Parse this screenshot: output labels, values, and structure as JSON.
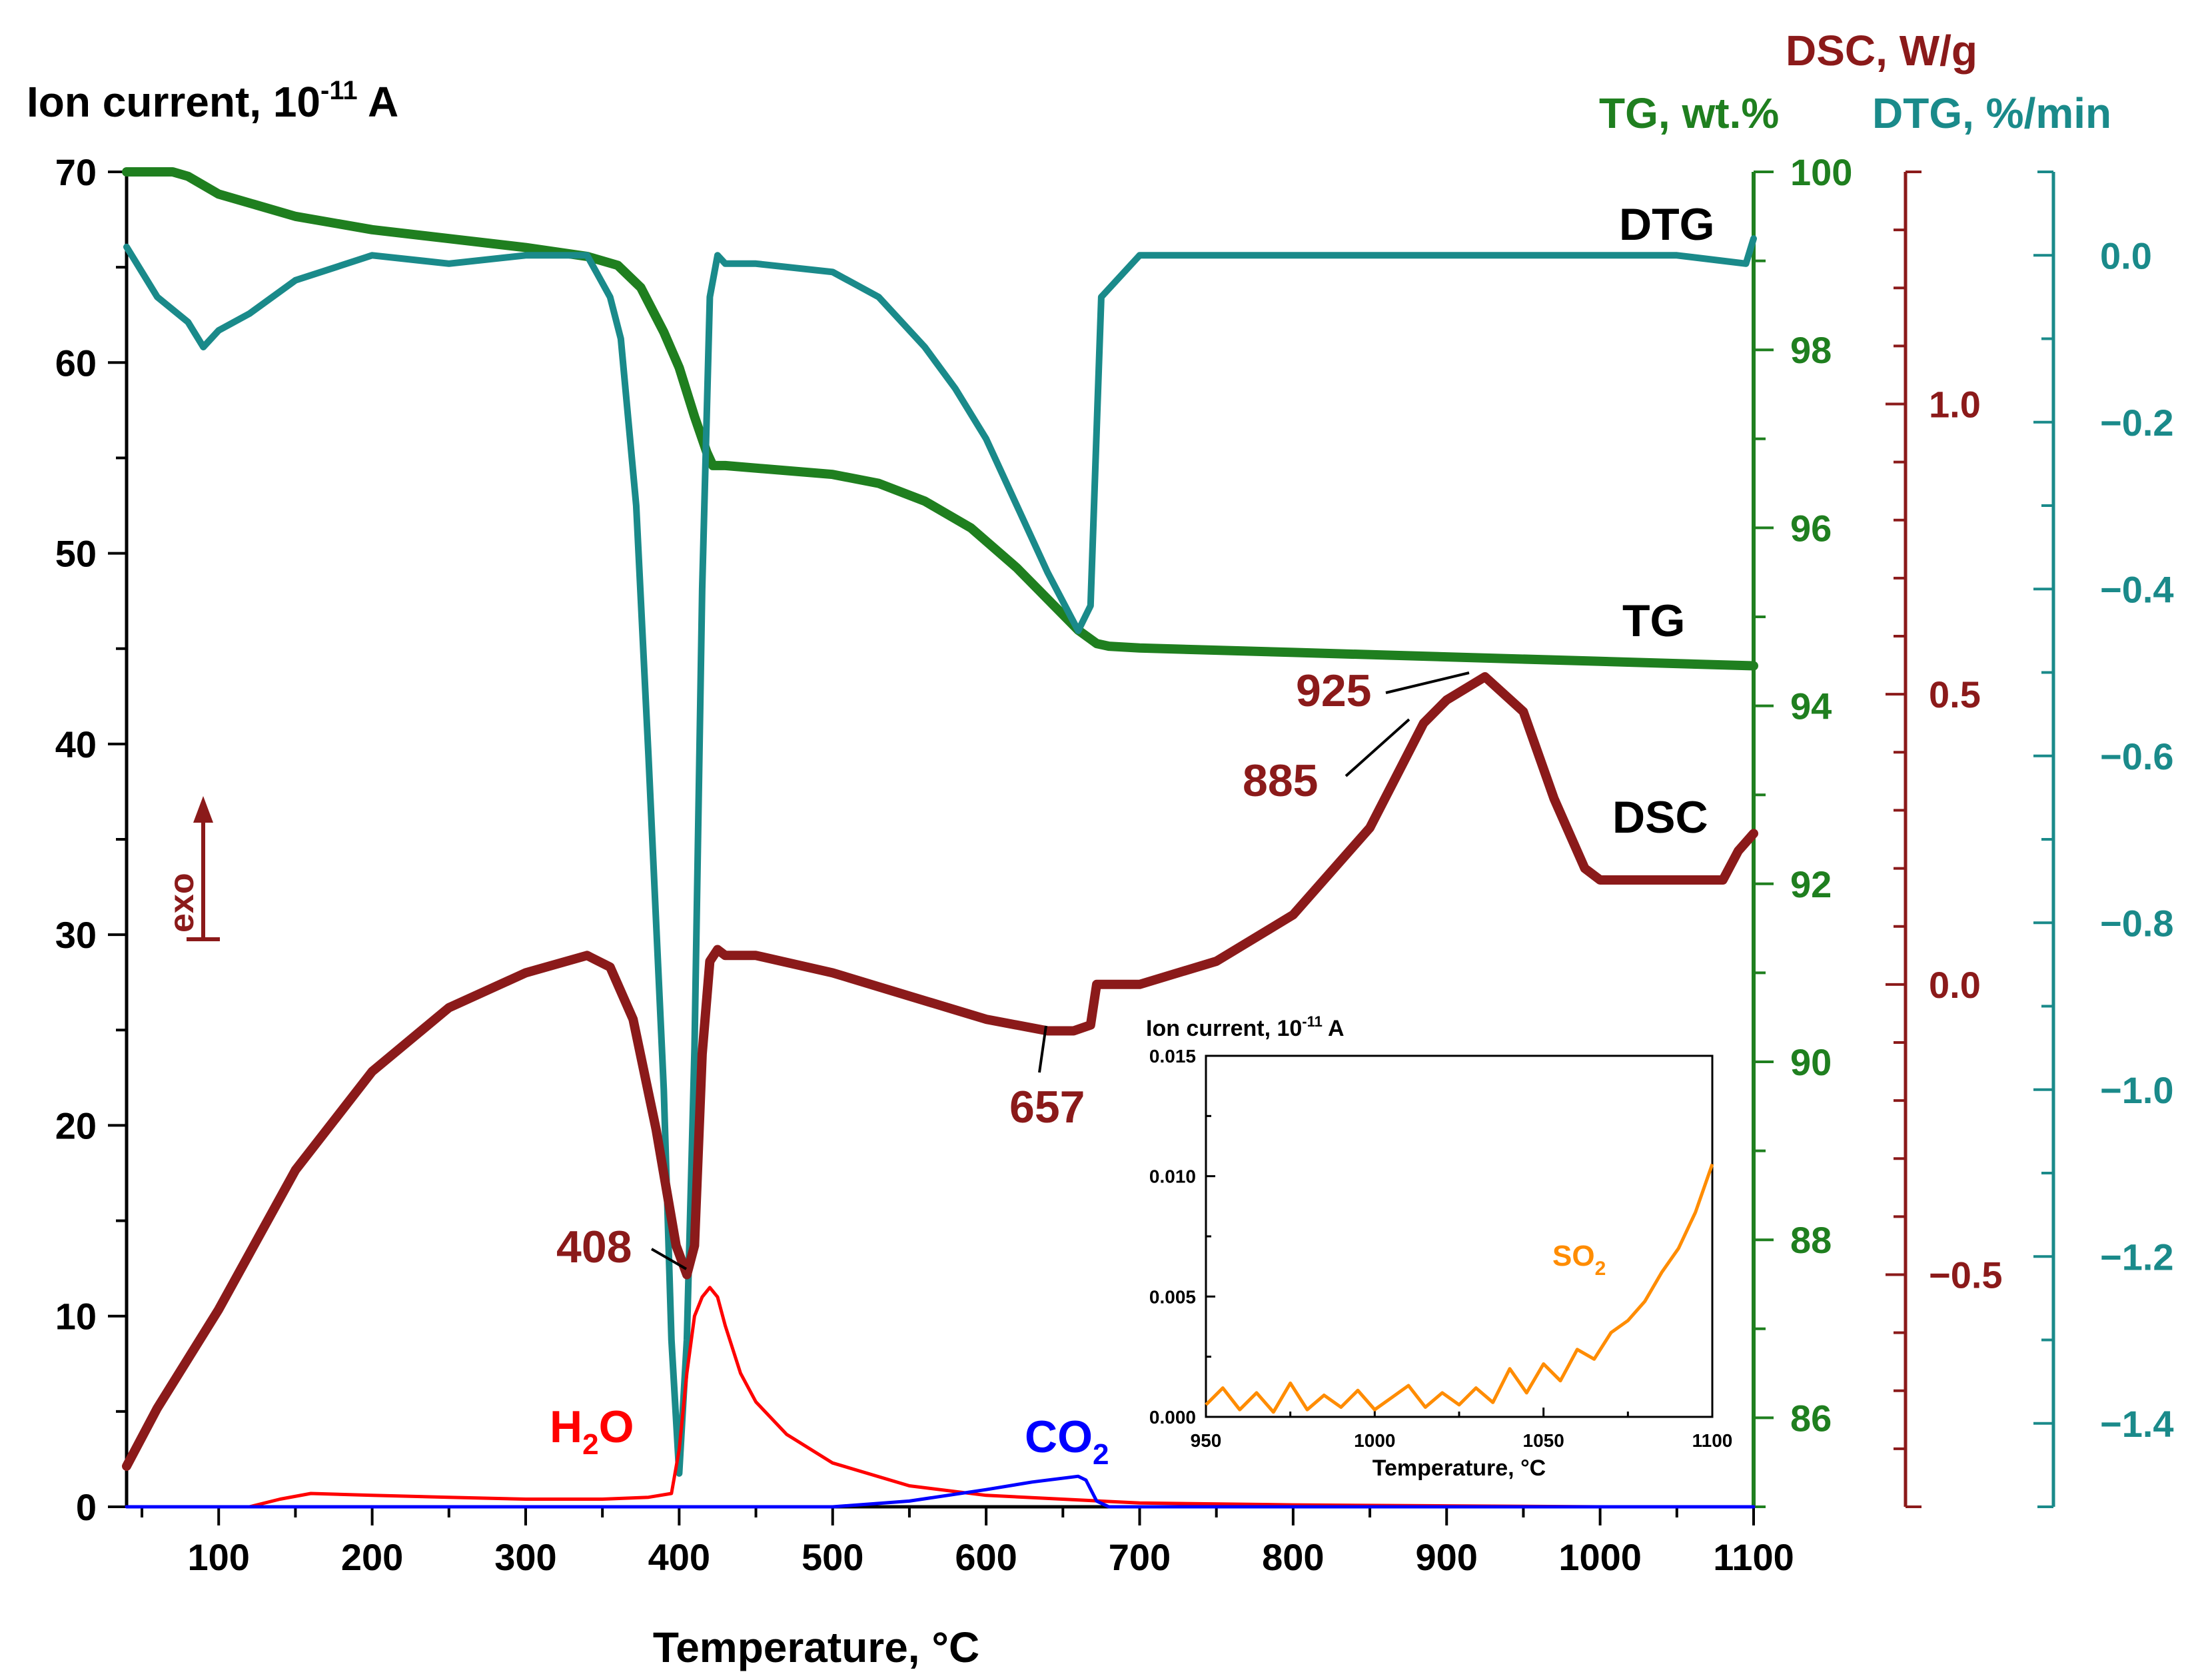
{
  "chart_data": [
    {
      "type": "line",
      "title": "",
      "xlabel": "Temperature, °C",
      "xlim": [
        40,
        1100
      ],
      "x_ticks": [
        100,
        200,
        300,
        400,
        500,
        600,
        700,
        800,
        900,
        1000,
        1100
      ],
      "axes": {
        "ion_current": {
          "label_main": "Ion current, 10",
          "label_exp": "-11",
          "label_unit": " A",
          "ylim": [
            0,
            70
          ],
          "ticks": [
            0,
            10,
            20,
            30,
            40,
            50,
            60,
            70
          ],
          "color": "#000000"
        },
        "tg": {
          "label": "TG, wt.%",
          "ylim": [
            85,
            100
          ],
          "ticks": [
            86,
            88,
            90,
            92,
            94,
            96,
            98,
            100
          ],
          "color": "#1f7f1f"
        },
        "dsc": {
          "label": "DSC, W/g",
          "ylim": [
            -0.9,
            1.4
          ],
          "ticks": [
            -0.5,
            0.0,
            0.5,
            1.0
          ],
          "tick_labels": [
            "−0.5",
            "0.0",
            "0.5",
            "1.0"
          ],
          "color": "#8b1a1a"
        },
        "dtg": {
          "label": "DTG, %/min",
          "ylim": [
            -1.5,
            0.1
          ],
          "ticks": [
            -1.4,
            -1.2,
            -1.0,
            -0.8,
            -0.6,
            -0.4,
            -0.2,
            0.0
          ],
          "tick_labels": [
            "−1.4",
            "−1.2",
            "−1.0",
            "−0.8",
            "−0.6",
            "−0.4",
            "−0.2",
            "0.0"
          ],
          "color": "#1a8a8a"
        }
      },
      "series": [
        {
          "name": "TG",
          "axis": "tg",
          "color": "#1f7f1f",
          "label": "TG",
          "x": [
            40,
            70,
            80,
            100,
            150,
            200,
            250,
            300,
            340,
            360,
            375,
            390,
            400,
            410,
            418,
            422,
            430,
            500,
            530,
            560,
            590,
            620,
            640,
            660,
            672,
            680,
            700,
            800,
            900,
            1000,
            1100
          ],
          "y": [
            100.0,
            100.0,
            99.95,
            99.75,
            99.5,
            99.35,
            99.25,
            99.15,
            99.05,
            98.95,
            98.7,
            98.2,
            97.8,
            97.25,
            96.85,
            96.7,
            96.7,
            96.6,
            96.5,
            96.3,
            96.0,
            95.55,
            95.2,
            94.85,
            94.7,
            94.67,
            94.65,
            94.6,
            94.55,
            94.5,
            94.45
          ]
        },
        {
          "name": "DTG",
          "axis": "dtg",
          "color": "#1a8a8a",
          "label": "DTG",
          "x": [
            40,
            60,
            80,
            90,
            100,
            120,
            150,
            200,
            250,
            300,
            340,
            355,
            362,
            372,
            380,
            390,
            395,
            400,
            405,
            410,
            415,
            420,
            425,
            430,
            450,
            500,
            530,
            560,
            580,
            600,
            620,
            640,
            660,
            668,
            675,
            700,
            800,
            900,
            1000,
            1050,
            1095,
            1100
          ],
          "y": [
            0.01,
            -0.05,
            -0.08,
            -0.11,
            -0.09,
            -0.07,
            -0.03,
            0.0,
            -0.01,
            0.0,
            0.0,
            -0.05,
            -0.1,
            -0.3,
            -0.6,
            -1.0,
            -1.3,
            -1.46,
            -1.3,
            -0.95,
            -0.4,
            -0.05,
            0.0,
            -0.01,
            -0.01,
            -0.02,
            -0.05,
            -0.11,
            -0.16,
            -0.22,
            -0.3,
            -0.38,
            -0.45,
            -0.42,
            -0.05,
            0.0,
            0.0,
            0.0,
            0.0,
            0.0,
            -0.01,
            0.02
          ]
        },
        {
          "name": "DSC",
          "axis": "dsc",
          "color": "#8b1a1a",
          "label": "DSC",
          "x": [
            40,
            60,
            100,
            150,
            200,
            250,
            300,
            340,
            355,
            370,
            385,
            398,
            405,
            410,
            415,
            420,
            425,
            430,
            450,
            500,
            550,
            600,
            640,
            657,
            668,
            672,
            680,
            700,
            750,
            800,
            850,
            885,
            900,
            925,
            950,
            970,
            990,
            1000,
            1010,
            1050,
            1080,
            1090,
            1100
          ],
          "y": [
            -0.83,
            -0.73,
            -0.56,
            -0.32,
            -0.15,
            -0.04,
            0.02,
            0.05,
            0.03,
            -0.06,
            -0.25,
            -0.45,
            -0.5,
            -0.45,
            -0.12,
            0.04,
            0.06,
            0.05,
            0.05,
            0.02,
            -0.02,
            -0.06,
            -0.08,
            -0.08,
            -0.07,
            0.0,
            0.0,
            0.0,
            0.04,
            0.12,
            0.27,
            0.45,
            0.49,
            0.53,
            0.47,
            0.32,
            0.2,
            0.18,
            0.18,
            0.18,
            0.18,
            0.23,
            0.26
          ]
        },
        {
          "name": "H2O",
          "axis": "ion_current",
          "color": "#ff0000",
          "x": [
            40,
            120,
            140,
            160,
            200,
            250,
            300,
            350,
            380,
            395,
            400,
            405,
            410,
            415,
            420,
            425,
            430,
            440,
            450,
            470,
            500,
            550,
            600,
            700,
            800,
            900,
            1000,
            1100
          ],
          "y": [
            0,
            0,
            0.4,
            0.7,
            0.6,
            0.5,
            0.4,
            0.4,
            0.5,
            0.7,
            3.0,
            7.0,
            10.0,
            11.0,
            11.5,
            11.0,
            9.5,
            7.0,
            5.5,
            3.8,
            2.3,
            1.1,
            0.6,
            0.2,
            0.1,
            0.05,
            0.0,
            0.0
          ]
        },
        {
          "name": "CO2",
          "axis": "ion_current",
          "color": "#0000ff",
          "x": [
            40,
            500,
            550,
            600,
            630,
            660,
            665,
            672,
            680,
            700,
            1100
          ],
          "y": [
            0,
            0,
            0.3,
            0.9,
            1.3,
            1.6,
            1.4,
            0.3,
            0.0,
            0.0,
            0.0
          ]
        }
      ],
      "annotations": [
        {
          "text": "408",
          "x": 408
        },
        {
          "text": "657",
          "x": 657
        },
        {
          "text": "885",
          "x": 885
        },
        {
          "text": "925",
          "x": 925
        }
      ],
      "series_text_labels": {
        "h2o_main": "H",
        "h2o_sub": "2",
        "h2o_end": "O",
        "co2_main": "CO",
        "co2_sub": "2"
      },
      "exo_label": "exo"
    },
    {
      "type": "line",
      "title_main": "Ion current, 10",
      "title_exp": "-11",
      "title_unit": " A",
      "xlabel": "Temperature, °C",
      "xlim": [
        950,
        1100
      ],
      "ylim": [
        0,
        0.015
      ],
      "x_ticks": [
        950,
        1000,
        1050,
        1100
      ],
      "y_ticks": [
        0.0,
        0.005,
        0.01,
        0.015
      ],
      "y_tick_labels": [
        "0.000",
        "0.005",
        "0.010",
        "0.015"
      ],
      "series": [
        {
          "name": "SO2",
          "color": "#ff8c00",
          "x": [
            950,
            955,
            960,
            965,
            970,
            975,
            980,
            985,
            990,
            995,
            1000,
            1005,
            1010,
            1015,
            1020,
            1025,
            1030,
            1035,
            1040,
            1045,
            1050,
            1055,
            1060,
            1065,
            1070,
            1075,
            1080,
            1085,
            1090,
            1095,
            1100
          ],
          "y": [
            0.0005,
            0.0012,
            0.0003,
            0.001,
            0.0002,
            0.0014,
            0.0003,
            0.0009,
            0.0004,
            0.0011,
            0.0003,
            0.0008,
            0.0013,
            0.0004,
            0.001,
            0.0005,
            0.0012,
            0.0006,
            0.002,
            0.001,
            0.0022,
            0.0015,
            0.0028,
            0.0024,
            0.0035,
            0.004,
            0.0048,
            0.006,
            0.007,
            0.0085,
            0.0105
          ]
        }
      ],
      "series_label_main": "SO",
      "series_label_sub": "2"
    }
  ]
}
